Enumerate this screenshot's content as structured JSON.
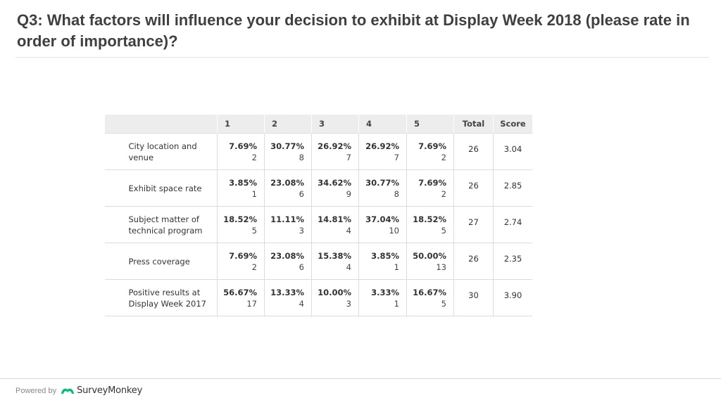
{
  "title": "Q3: What factors will influence your decision to exhibit at Display Week 2018 (please rate in order of importance)?",
  "table": {
    "headers": [
      "",
      "1",
      "2",
      "3",
      "4",
      "5",
      "Total",
      "Score"
    ],
    "rows": [
      {
        "label": "City location and venue",
        "cells": [
          {
            "pct": "7.69%",
            "count": "2"
          },
          {
            "pct": "30.77%",
            "count": "8"
          },
          {
            "pct": "26.92%",
            "count": "7"
          },
          {
            "pct": "26.92%",
            "count": "7"
          },
          {
            "pct": "7.69%",
            "count": "2"
          }
        ],
        "total": "26",
        "score": "3.04"
      },
      {
        "label": "Exhibit space rate",
        "cells": [
          {
            "pct": "3.85%",
            "count": "1"
          },
          {
            "pct": "23.08%",
            "count": "6"
          },
          {
            "pct": "34.62%",
            "count": "9"
          },
          {
            "pct": "30.77%",
            "count": "8"
          },
          {
            "pct": "7.69%",
            "count": "2"
          }
        ],
        "total": "26",
        "score": "2.85"
      },
      {
        "label": "Subject matter of technical program",
        "cells": [
          {
            "pct": "18.52%",
            "count": "5"
          },
          {
            "pct": "11.11%",
            "count": "3"
          },
          {
            "pct": "14.81%",
            "count": "4"
          },
          {
            "pct": "37.04%",
            "count": "10"
          },
          {
            "pct": "18.52%",
            "count": "5"
          }
        ],
        "total": "27",
        "score": "2.74"
      },
      {
        "label": "Press coverage",
        "cells": [
          {
            "pct": "7.69%",
            "count": "2"
          },
          {
            "pct": "23.08%",
            "count": "6"
          },
          {
            "pct": "15.38%",
            "count": "4"
          },
          {
            "pct": "3.85%",
            "count": "1"
          },
          {
            "pct": "50.00%",
            "count": "13"
          }
        ],
        "total": "26",
        "score": "2.35"
      },
      {
        "label": "Positive results at Display Week 2017",
        "cells": [
          {
            "pct": "56.67%",
            "count": "17"
          },
          {
            "pct": "13.33%",
            "count": "4"
          },
          {
            "pct": "10.00%",
            "count": "3"
          },
          {
            "pct": "3.33%",
            "count": "1"
          },
          {
            "pct": "16.67%",
            "count": "5"
          }
        ],
        "total": "30",
        "score": "3.90"
      }
    ]
  },
  "footer": {
    "powered_by": "Powered by",
    "brand": "SurveyMonkey",
    "logo_icon": "surveymonkey-logo-icon",
    "logo_color": "#00bf6f"
  }
}
